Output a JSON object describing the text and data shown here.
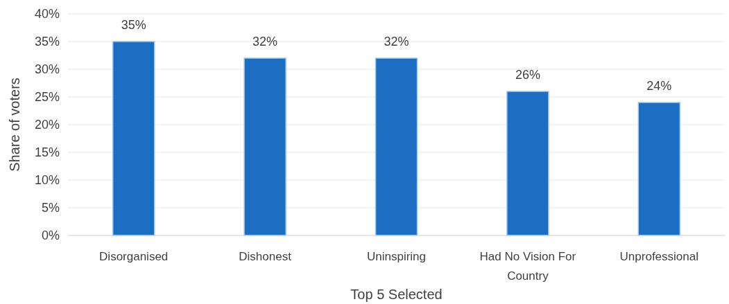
{
  "chart_data": {
    "type": "bar",
    "xlabel": "Top 5 Selected",
    "ylabel": "Share of voters",
    "categories": [
      "Disorganised",
      "Dishonest",
      "Uninspiring",
      "Had No Vision For Country",
      "Unprofessional"
    ],
    "values": [
      35,
      32,
      32,
      26,
      24
    ],
    "value_labels": [
      "35%",
      "32%",
      "32%",
      "26%",
      "24%"
    ],
    "color": "#1b6ec2",
    "ylim": [
      0,
      40
    ],
    "yticks": [
      {
        "value": 0,
        "label": "0%"
      },
      {
        "value": 5,
        "label": "5%"
      },
      {
        "value": 10,
        "label": "10%"
      },
      {
        "value": 15,
        "label": "15%"
      },
      {
        "value": 20,
        "label": "20%"
      },
      {
        "value": 25,
        "label": "25%"
      },
      {
        "value": 30,
        "label": "30%"
      },
      {
        "value": 35,
        "label": "35%"
      },
      {
        "value": 40,
        "label": "40%"
      }
    ],
    "grid": "y"
  }
}
